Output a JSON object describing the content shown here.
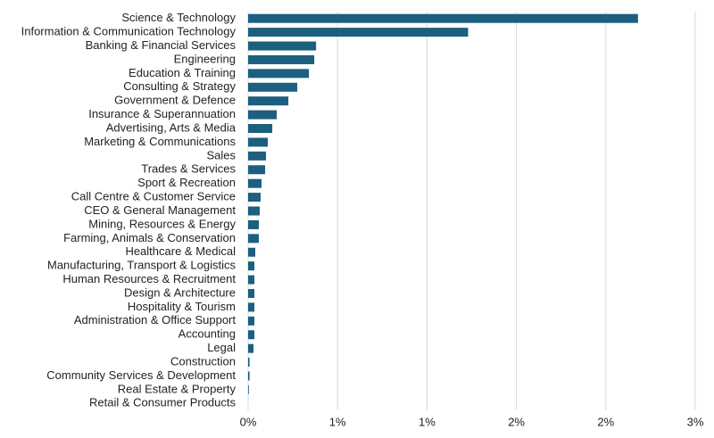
{
  "chart_data": {
    "type": "hbar",
    "categories": [
      "Science & Technology",
      "Information & Communication Technology",
      "Banking & Financial Services",
      "Engineering",
      "Education & Training",
      "Consulting & Strategy",
      "Government & Defence",
      "Insurance & Superannuation",
      "Advertising, Arts & Media",
      "Marketing & Communications",
      "Sales",
      "Trades & Services",
      "Sport & Recreation",
      "Call Centre & Customer Service",
      "CEO & General Management",
      "Mining, Resources & Energy",
      "Farming, Animals & Conservation",
      "Healthcare & Medical",
      "Manufacturing, Transport & Logistics",
      "Human Resources & Recruitment",
      "Design & Architecture",
      "Hospitality & Tourism",
      "Administration & Office Support",
      "Accounting",
      "Legal",
      "Construction",
      "Community Services & Development",
      "Real Estate & Property",
      "Retail & Consumer Products"
    ],
    "values": [
      2.18,
      1.23,
      0.38,
      0.37,
      0.34,
      0.275,
      0.225,
      0.16,
      0.135,
      0.11,
      0.1,
      0.095,
      0.075,
      0.07,
      0.065,
      0.06,
      0.06,
      0.04,
      0.035,
      0.035,
      0.035,
      0.035,
      0.035,
      0.035,
      0.03,
      0.008,
      0.008,
      0.004,
      0
    ],
    "color": "#1c5f7f",
    "xlim": [
      0,
      2.5
    ],
    "xticks": [
      {
        "value": 0,
        "label": "0%"
      },
      {
        "value": 0.5,
        "label": "1%"
      },
      {
        "value": 1,
        "label": "1%"
      },
      {
        "value": 1.5,
        "label": "2%"
      },
      {
        "value": 2,
        "label": "2%"
      },
      {
        "value": 2.5,
        "label": "3%"
      }
    ],
    "grid": true
  }
}
